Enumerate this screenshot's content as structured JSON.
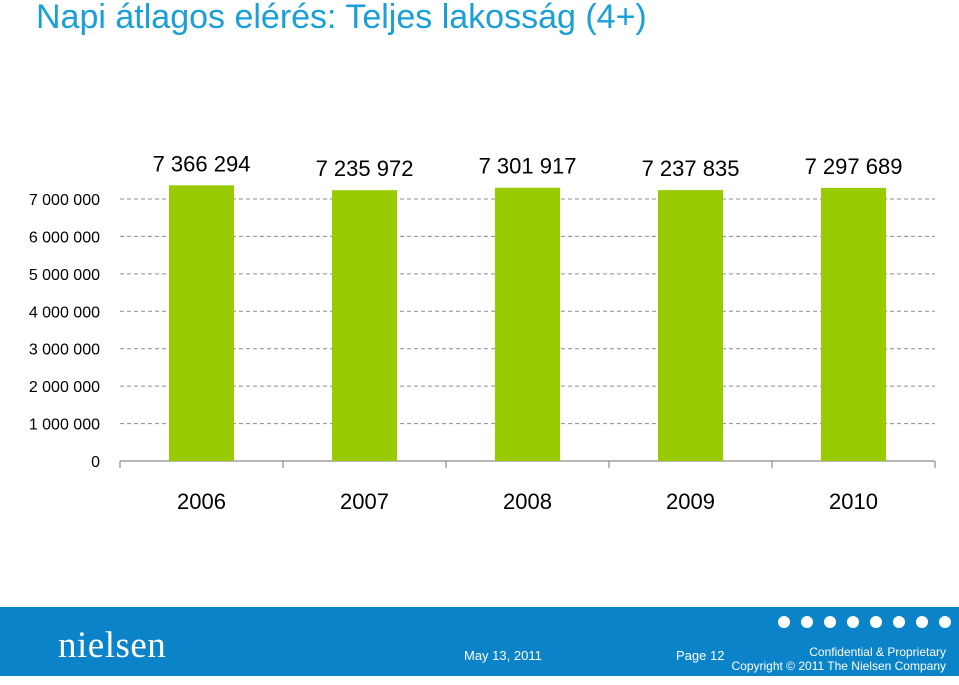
{
  "slide": {
    "title": "Napi átlagos elérés: Teljes lakosság (4+)"
  },
  "chart_data": {
    "type": "bar",
    "categories": [
      "2006",
      "2007",
      "2008",
      "2009",
      "2010"
    ],
    "values": [
      7366294,
      7235972,
      7301917,
      7237835,
      7297689
    ],
    "data_labels": [
      "7 366 294",
      "7 235 972",
      "7 301 917",
      "7 237 835",
      "7 297 689"
    ],
    "y_ticks": [
      0,
      1000000,
      2000000,
      3000000,
      4000000,
      5000000,
      6000000,
      7000000
    ],
    "y_tick_labels": [
      "0",
      "1 000 000",
      "2 000 000",
      "3 000 000",
      "4 000 000",
      "5 000 000",
      "6 000 000",
      "7 000 000"
    ],
    "ylim": [
      0,
      7000000
    ],
    "grid": true,
    "legend": false,
    "bar_color": "#99cc00"
  },
  "footer": {
    "logo": "nielsen",
    "date": "May 13, 2011",
    "page": "Page 12",
    "confidential": "Confidential & Proprietary",
    "copyright": "Copyright © 2011 The Nielsen Company"
  },
  "colors": {
    "title": "#1a9fd8",
    "footer_bg": "#0b83c8"
  }
}
